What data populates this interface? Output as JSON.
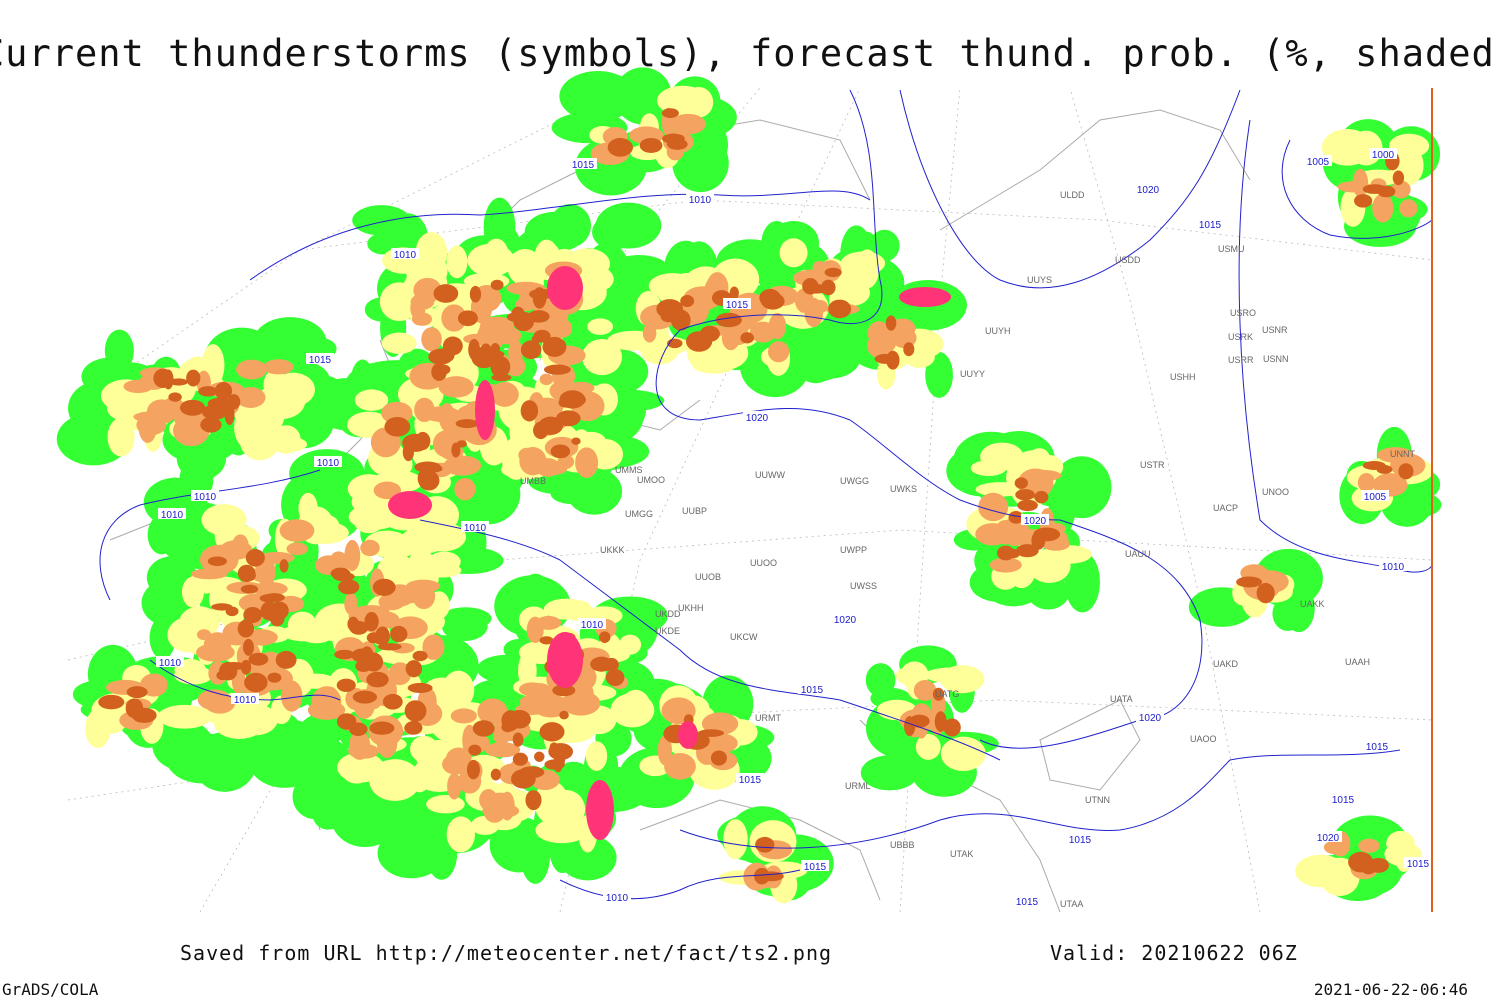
{
  "title": "Current thunderstorms (symbols), forecast thund. prob. (%, shaded)",
  "footer": {
    "source": "Saved from URL http://meteocenter.net/fact/ts2.png",
    "valid": "Valid: 20210622 06Z",
    "software": "GrADS/COLA",
    "timestamp": "2021-06-22-06:46"
  },
  "isobar_labels": [
    1015,
    1010,
    1020,
    1015,
    1010,
    1015,
    1015,
    1020,
    1010,
    1010,
    1010,
    1010,
    1020,
    1010,
    1005,
    1000,
    1005,
    1010,
    1020,
    1010,
    1010,
    1015,
    1020,
    1015,
    1015,
    1015,
    1020,
    1015,
    1015,
    1010,
    1015,
    1015
  ],
  "station_labels": [
    "ULDD",
    "USDD",
    "USMU",
    "USRO",
    "USRK",
    "USNR",
    "USRR",
    "USNN",
    "USHH",
    "UUYY",
    "UUYH",
    "UUYS",
    "USTR",
    "UNOO",
    "UACP",
    "UAUU",
    "UAKD",
    "UATA",
    "UAOO",
    "UTNN",
    "UTAK",
    "UTAA",
    "UATG",
    "UWGG",
    "UWKS",
    "UWPP",
    "UWSS",
    "UUOO",
    "UUOB",
    "UMGG",
    "UUBP",
    "UMMS",
    "UMOO",
    "UMBB",
    "UKCW",
    "UKDD",
    "UKDE",
    "UKHH",
    "URMT",
    "URML",
    "UBBB",
    "UKKK",
    "UUWW",
    "UAKK",
    "UNNT",
    "UAAH"
  ]
}
